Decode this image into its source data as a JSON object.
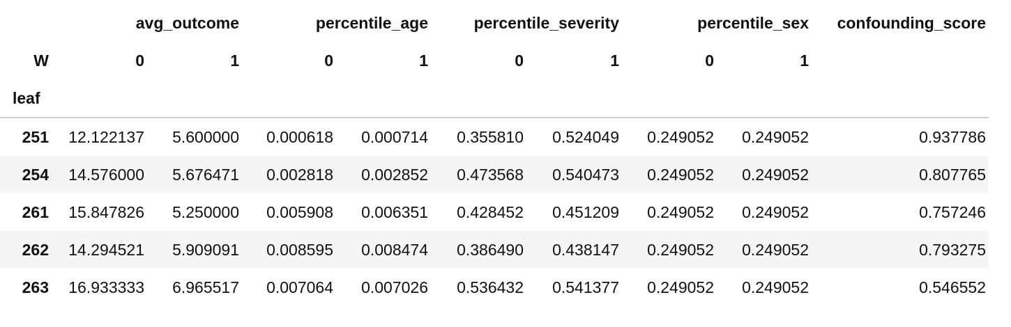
{
  "table": {
    "header_level0": {
      "blank": "",
      "groups": [
        "avg_outcome",
        "percentile_age",
        "percentile_severity",
        "percentile_sex"
      ],
      "single": "confounding_score"
    },
    "header_level1": {
      "name": "W",
      "sublabels": [
        "0",
        "1",
        "0",
        "1",
        "0",
        "1",
        "0",
        "1"
      ]
    },
    "index_name": "leaf",
    "rows": [
      {
        "index": "251",
        "values": [
          "12.122137",
          "5.600000",
          "0.000618",
          "0.000714",
          "0.355810",
          "0.524049",
          "0.249052",
          "0.249052",
          "0.937786"
        ]
      },
      {
        "index": "254",
        "values": [
          "14.576000",
          "5.676471",
          "0.002818",
          "0.002852",
          "0.473568",
          "0.540473",
          "0.249052",
          "0.249052",
          "0.807765"
        ]
      },
      {
        "index": "261",
        "values": [
          "15.847826",
          "5.250000",
          "0.005908",
          "0.006351",
          "0.428452",
          "0.451209",
          "0.249052",
          "0.249052",
          "0.757246"
        ]
      },
      {
        "index": "262",
        "values": [
          "14.294521",
          "5.909091",
          "0.008595",
          "0.008474",
          "0.386490",
          "0.438147",
          "0.249052",
          "0.249052",
          "0.793275"
        ]
      },
      {
        "index": "263",
        "values": [
          "16.933333",
          "6.965517",
          "0.007064",
          "0.007026",
          "0.536432",
          "0.541377",
          "0.249052",
          "0.249052",
          "0.546552"
        ]
      }
    ]
  }
}
